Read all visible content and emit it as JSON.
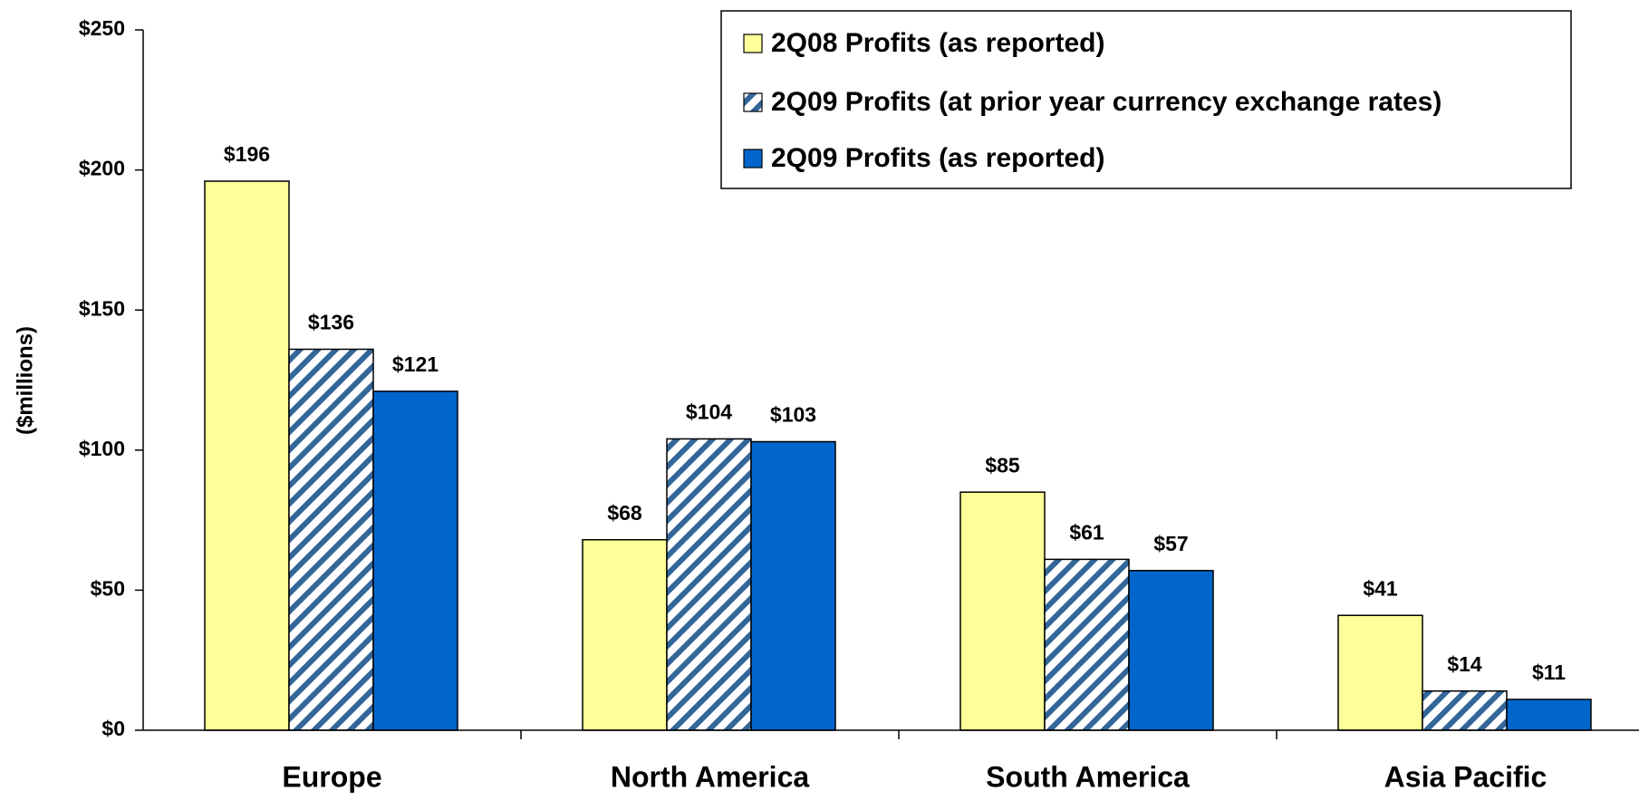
{
  "chart_data": {
    "type": "bar",
    "y_label": "($millions)",
    "categories": [
      "Europe",
      "North America",
      "South America",
      "Asia Pacific"
    ],
    "series": [
      {
        "name": "2Q08 Profits (as reported)",
        "color": "#ffff99",
        "values": [
          196,
          68,
          85,
          41
        ],
        "value_labels": [
          "$196",
          "$68",
          "$85",
          "$41"
        ]
      },
      {
        "name": "2Q09 Profits (at prior year currency exchange rates)",
        "color": "#336699",
        "hatch": true,
        "values": [
          136,
          104,
          61,
          14
        ],
        "value_labels": [
          "$136",
          "$104",
          "$61",
          "$14"
        ]
      },
      {
        "name": "2Q09 Profits (as reported)",
        "color": "#0066cc",
        "values": [
          121,
          103,
          57,
          11
        ],
        "value_labels": [
          "$121",
          "$103",
          "$57",
          "$11"
        ]
      }
    ],
    "ylim": [
      0,
      250
    ],
    "yticks": [
      {
        "value": 0,
        "label": "$0"
      },
      {
        "value": 50,
        "label": "$50"
      },
      {
        "value": 100,
        "label": "$100"
      },
      {
        "value": 150,
        "label": "$150"
      },
      {
        "value": 200,
        "label": "$200"
      },
      {
        "value": 250,
        "label": "$250"
      }
    ],
    "legend": "top-right"
  }
}
